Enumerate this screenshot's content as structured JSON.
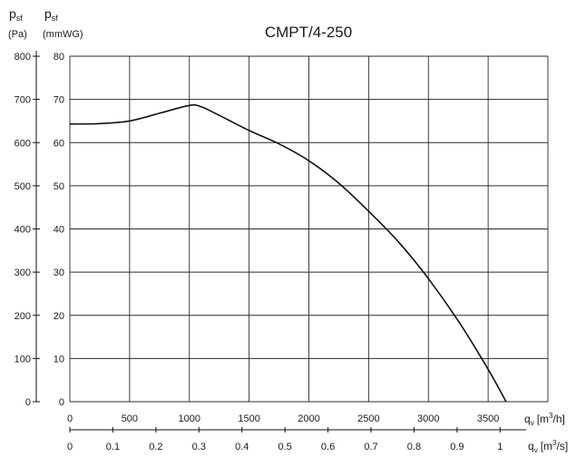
{
  "chart_data": {
    "type": "line",
    "title": "CMPT/4-250",
    "y_left": {
      "label_main": "p",
      "label_sub": "sf",
      "unit": "(Pa)",
      "ticks": [
        "0",
        "100",
        "200",
        "300",
        "400",
        "500",
        "600",
        "700",
        "800"
      ],
      "range": [
        0,
        800
      ]
    },
    "y_inner": {
      "label_main": "p",
      "label_sub": "sf",
      "unit": "(mmWG)",
      "ticks": [
        "0",
        "10",
        "20",
        "30",
        "40",
        "50",
        "60",
        "70",
        "80"
      ]
    },
    "x_main": {
      "label_main": "q",
      "label_sub": "v",
      "unit_pre": "[m",
      "unit_sup": "3",
      "unit_post": "/h]",
      "ticks": [
        "0",
        "500",
        "1000",
        "1500",
        "2000",
        "2500",
        "3000",
        "3500"
      ],
      "range": [
        0,
        4000
      ]
    },
    "x_secondary": {
      "label_main": "q",
      "label_sub": "v",
      "unit_pre": "[m",
      "unit_sup": "3",
      "unit_post": "/s]",
      "ticks": [
        "0",
        "0.1",
        "0.2",
        "0.3",
        "0.4",
        "0.5",
        "0.6",
        "0.7",
        "0.8",
        "0.9",
        "1"
      ]
    },
    "grid": true,
    "series": [
      {
        "x": [
          0,
          250,
          500,
          750,
          1000,
          1100,
          1250,
          1500,
          1750,
          2000,
          2250,
          2500,
          2750,
          3000,
          3250,
          3500,
          3650
        ],
        "y": [
          643,
          644,
          650,
          668,
          686,
          683,
          663,
          628,
          597,
          558,
          506,
          441,
          370,
          285,
          187,
          75,
          0
        ]
      }
    ]
  }
}
